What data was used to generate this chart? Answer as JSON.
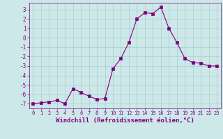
{
  "x": [
    0,
    1,
    2,
    3,
    4,
    5,
    6,
    7,
    8,
    9,
    10,
    11,
    12,
    13,
    14,
    15,
    16,
    17,
    18,
    19,
    20,
    21,
    22,
    23
  ],
  "y": [
    -7.0,
    -6.9,
    -6.8,
    -6.65,
    -7.0,
    -5.4,
    -5.8,
    -6.2,
    -6.55,
    -6.45,
    -3.3,
    -2.2,
    -0.5,
    2.0,
    2.65,
    2.55,
    3.25,
    1.0,
    -0.5,
    -2.2,
    -2.65,
    -2.7,
    -3.0,
    -3.0
  ],
  "line_color": "#800080",
  "marker": "s",
  "marker_size": 2.5,
  "bg_color": "#cce8e8",
  "grid_color": "#aacccc",
  "xlabel": "Windchill (Refroidissement éolien,°C)",
  "xlim": [
    -0.5,
    23.5
  ],
  "ylim": [
    -7.5,
    3.7
  ],
  "yticks": [
    -7,
    -6,
    -5,
    -4,
    -3,
    -2,
    -1,
    0,
    1,
    2,
    3
  ],
  "xticks": [
    0,
    1,
    2,
    3,
    4,
    5,
    6,
    7,
    8,
    9,
    10,
    11,
    12,
    13,
    14,
    15,
    16,
    17,
    18,
    19,
    20,
    21,
    22,
    23
  ],
  "tick_color": "#800080",
  "label_color": "#800080",
  "axis_color": "#800080",
  "xlabel_fontsize": 6.5,
  "tick_fontsize": 5.5,
  "xtick_fontsize": 5.0
}
